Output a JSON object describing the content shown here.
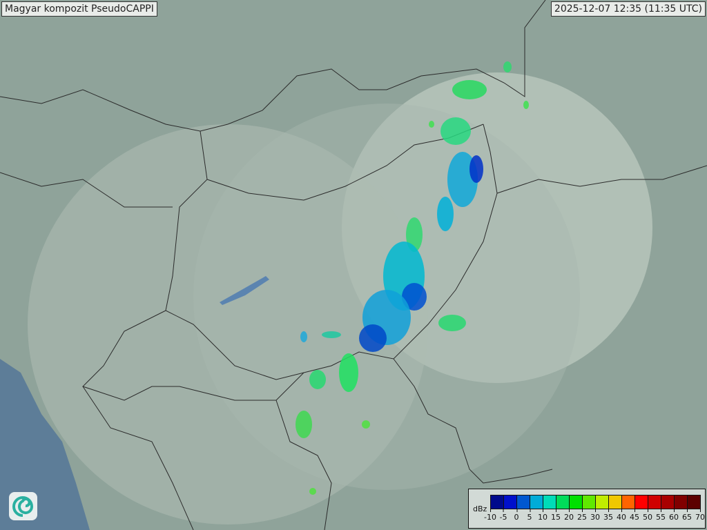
{
  "header": {
    "title": "Magyar kompozit  PseudoCAPPI",
    "timestamp": "2025-12-07 12:35 (11:35 UTC)"
  },
  "legend": {
    "unit": "dBz",
    "ticks": [
      "-10",
      "-5",
      "0",
      "5",
      "10",
      "15",
      "20",
      "25",
      "30",
      "35",
      "40",
      "45",
      "50",
      "55",
      "60",
      "65",
      "70"
    ],
    "colors": [
      "#000a8c",
      "#0010cc",
      "#0058d0",
      "#00acd8",
      "#00dcb8",
      "#00dc5a",
      "#00e000",
      "#60e800",
      "#c0ec00",
      "#f0c800",
      "#ff6400",
      "#ff0000",
      "#d00000",
      "#a80000",
      "#800000",
      "#5c0000"
    ]
  },
  "colors": {
    "land": "#8fa39a",
    "coverage": "#b8c6bd",
    "sea": "#5d7d98",
    "border": "#2a2a2a"
  },
  "logo": {
    "icon": "swirl-logo-icon"
  }
}
